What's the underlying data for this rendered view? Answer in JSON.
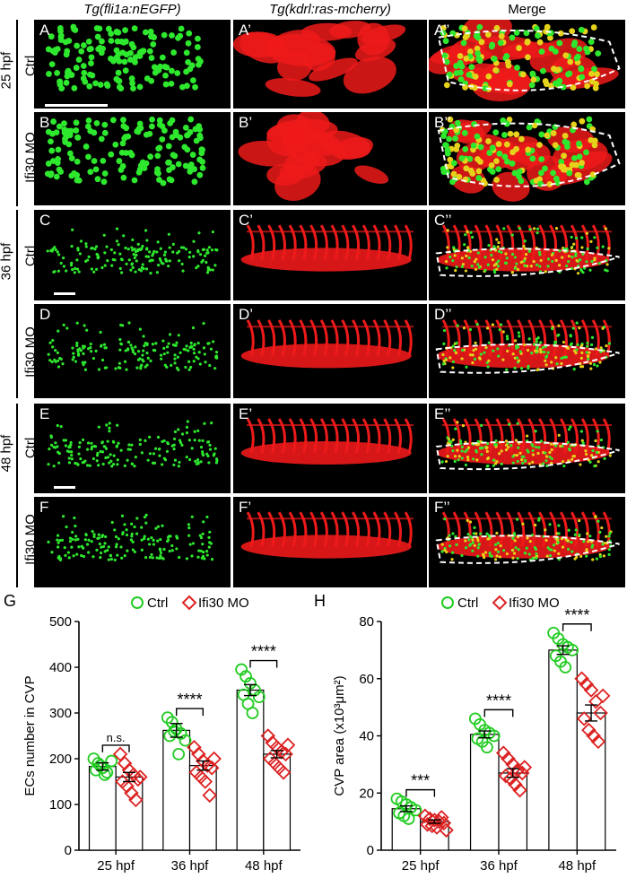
{
  "columns": [
    "Tg(fli1a:nEGFP)",
    "Tg(kdrl:ras-mcherry)",
    "Merge"
  ],
  "stages": [
    "25 hpf",
    "36 hpf",
    "48 hpf"
  ],
  "row_labels": [
    "Ctrl",
    "Ifi30 MO",
    "Ctrl",
    "Ifi30 MO",
    "Ctrl",
    "Ifi30 MO"
  ],
  "panel_labels": [
    [
      "A",
      "A’",
      "A’’"
    ],
    [
      "B",
      "B’",
      "B’’"
    ],
    [
      "C",
      "C’",
      "C’’"
    ],
    [
      "D",
      "D’",
      "D’’"
    ],
    [
      "E",
      "E’",
      "E’’"
    ],
    [
      "F",
      "F’",
      "F’’"
    ]
  ],
  "colors": {
    "ctrl": "#22cc22",
    "mo": "#dd2222",
    "egfp": "#2ee82e",
    "mcherry": "#ee1a1a",
    "merge_yellow": "#e6d21a"
  },
  "chart_data": [
    {
      "panel_letter": "G",
      "type": "bar",
      "categories": [
        "25 hpf",
        "36 hpf",
        "48 hpf"
      ],
      "legend": [
        "Ctrl",
        "Ifi30 MO"
      ],
      "ylabel": "ECs number in CVP",
      "ylim": [
        0,
        500
      ],
      "yticks": [
        0,
        100,
        200,
        300,
        400,
        500
      ],
      "series": [
        {
          "name": "Ctrl",
          "marker": "circle",
          "values": [
            183,
            262,
            350
          ],
          "sem": [
            8,
            15,
            12
          ],
          "points": [
            [
              200,
              190,
              180,
              170,
              195,
              175,
              185,
              165
            ],
            [
              290,
              280,
              265,
              255,
              240,
              250,
              260,
              210
            ],
            [
              395,
              380,
              365,
              350,
              335,
              340,
              320,
              300
            ]
          ]
        },
        {
          "name": "Ifi30 MO",
          "marker": "diamond",
          "values": [
            160,
            185,
            210
          ],
          "sem": [
            10,
            10,
            8
          ],
          "points": [
            [
              210,
              190,
              175,
              165,
              155,
              150,
              140,
              125,
              110,
              160
            ],
            [
              225,
              210,
              195,
              185,
              180,
              170,
              160,
              150,
              120,
              200
            ],
            [
              250,
              235,
              225,
              215,
              210,
              200,
              190,
              180,
              170,
              230
            ]
          ]
        }
      ],
      "significance": [
        "n.s.",
        "****",
        "****"
      ]
    },
    {
      "panel_letter": "H",
      "type": "bar",
      "categories": [
        "25 hpf",
        "36 hpf",
        "48 hpf"
      ],
      "legend": [
        "Ctrl",
        "Ifi30 MO"
      ],
      "ylabel": "CVP area (x10³μm²)",
      "ylim": [
        0,
        80
      ],
      "yticks": [
        0,
        20,
        40,
        60,
        80
      ],
      "series": [
        {
          "name": "Ctrl",
          "marker": "circle",
          "values": [
            14.5,
            40.5,
            70
          ],
          "sem": [
            1.0,
            1.2,
            1.5
          ],
          "points": [
            [
              18,
              17,
              16,
              15,
              14,
              13,
              12,
              11
            ],
            [
              46,
              44,
              42,
              41,
              40,
              39,
              38,
              36
            ],
            [
              76,
              74,
              72,
              71,
              70,
              68,
              66,
              64
            ]
          ]
        },
        {
          "name": "Ifi30 MO",
          "marker": "diamond",
          "values": [
            10,
            27,
            48
          ],
          "sem": [
            0.6,
            1.5,
            2.8
          ],
          "points": [
            [
              12,
              11,
              10.5,
              10,
              9.5,
              9,
              8.5,
              8,
              11.5,
              7
            ],
            [
              34,
              32,
              30,
              28,
              27,
              26,
              25,
              23,
              21,
              29
            ],
            [
              60,
              58,
              56,
              52,
              48,
              46,
              42,
              40,
              38,
              54
            ]
          ]
        }
      ],
      "significance": [
        "***",
        "****",
        "****"
      ]
    }
  ]
}
